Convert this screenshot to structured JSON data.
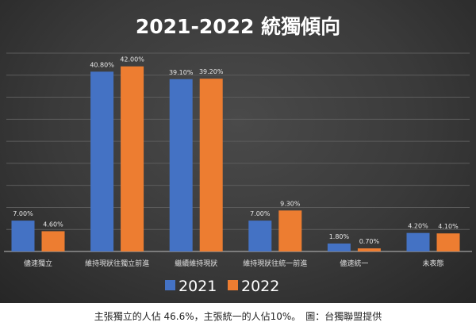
{
  "chart_data": {
    "type": "bar",
    "title": "2021-2022 統獨傾向",
    "categories": [
      "儘速獨立",
      "維持現狀往獨立前進",
      "繼續維持現狀",
      "維持現狀往統一前進",
      "儘速統一",
      "未表態"
    ],
    "series": [
      {
        "name": "2021",
        "color": "#4472c4",
        "values": [
          7.0,
          40.8,
          39.1,
          7.0,
          1.8,
          4.2
        ],
        "labels": [
          "7.00%",
          "40.80%",
          "39.10%",
          "7.00%",
          "1.80%",
          "4.20%"
        ]
      },
      {
        "name": "2022",
        "color": "#ed7d31",
        "values": [
          4.6,
          42.0,
          39.2,
          9.3,
          0.7,
          4.1
        ],
        "labels": [
          "4.60%",
          "42.00%",
          "39.20%",
          "9.30%",
          "0.70%",
          "4.10%"
        ]
      }
    ],
    "ylim": [
      0,
      45
    ],
    "grid": true,
    "legend": "bottom",
    "xlabel": "",
    "ylabel": ""
  },
  "caption": "主張獨立的人佔 46.6%，主張統一的人佔10%。　圖：台獨聯盟提供"
}
